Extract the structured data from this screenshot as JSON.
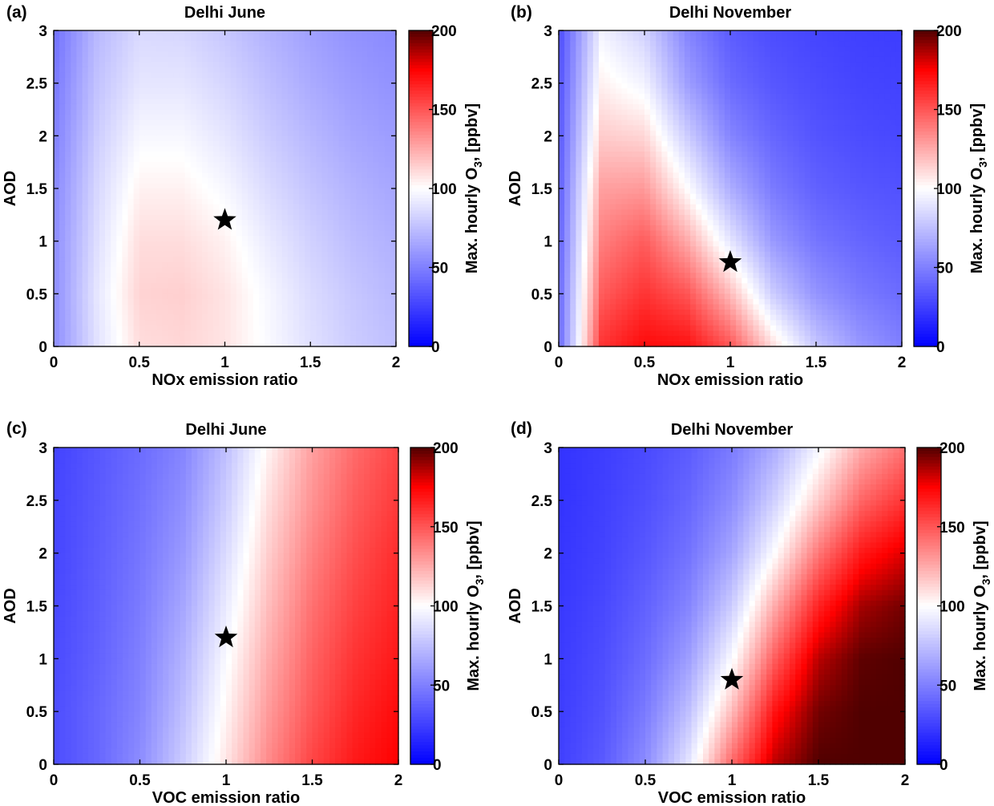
{
  "colormap": {
    "name": "blue-white-red-darkred",
    "stops": [
      {
        "v": 0,
        "color": "#0000ff"
      },
      {
        "v": 100,
        "color": "#ffffff"
      },
      {
        "v": 175,
        "color": "#ff0000"
      },
      {
        "v": 200,
        "color": "#500000"
      }
    ]
  },
  "chart_data": [
    {
      "type": "heatmap",
      "panel_label": "(a)",
      "title": "Delhi June",
      "xlabel": "NOx emission ratio",
      "ylabel": "AOD",
      "xlim": [
        0,
        2
      ],
      "ylim": [
        0,
        3
      ],
      "xticks": [
        "0",
        "0.5",
        "1",
        "1.5",
        "2"
      ],
      "yticks": [
        "0",
        "0.5",
        "1",
        "1.5",
        "2",
        "2.5",
        "3"
      ],
      "colorbar": {
        "label": "Max. hourly O",
        "label_sub": "3",
        "label_suffix": ", [ppbv]",
        "range": [
          0,
          200
        ],
        "ticks": [
          "0",
          "50",
          "100",
          "150",
          "200"
        ]
      },
      "marker": {
        "symbol": "star",
        "x": 1.0,
        "y": 1.2
      },
      "x": [
        0,
        0.25,
        0.5,
        0.75,
        1.0,
        1.25,
        1.5,
        1.75,
        2.0
      ],
      "y": [
        0,
        0.5,
        1.0,
        1.5,
        2.0,
        2.5,
        3.0
      ],
      "z": [
        [
          55,
          88,
          110,
          112,
          108,
          98,
          88,
          80,
          75
        ],
        [
          55,
          90,
          113,
          114,
          108,
          97,
          86,
          78,
          72
        ],
        [
          55,
          87,
          110,
          110,
          104,
          92,
          82,
          74,
          69
        ],
        [
          53,
          84,
          104,
          104,
          97,
          86,
          77,
          70,
          65
        ],
        [
          50,
          80,
          97,
          97,
          90,
          80,
          72,
          65,
          61
        ],
        [
          47,
          76,
          90,
          90,
          84,
          75,
          67,
          61,
          57
        ],
        [
          44,
          72,
          85,
          84,
          78,
          70,
          63,
          57,
          54
        ]
      ]
    },
    {
      "type": "heatmap",
      "panel_label": "(b)",
      "title": "Delhi November",
      "xlabel": "NOx emission ratio",
      "ylabel": "AOD",
      "xlim": [
        0,
        2
      ],
      "ylim": [
        0,
        3
      ],
      "xticks": [
        "0",
        "0.5",
        "1",
        "1.5",
        "2"
      ],
      "yticks": [
        "0",
        "0.5",
        "1",
        "1.5",
        "2",
        "2.5",
        "3"
      ],
      "colorbar": {
        "label": "Max. hourly O",
        "label_sub": "3",
        "label_suffix": ", [ppbv]",
        "range": [
          0,
          200
        ],
        "ticks": [
          "0",
          "50",
          "100",
          "150",
          "200"
        ]
      },
      "marker": {
        "symbol": "star",
        "x": 1.0,
        "y": 0.8
      },
      "x": [
        0,
        0.25,
        0.5,
        0.75,
        1.0,
        1.25,
        1.5,
        1.75,
        2.0
      ],
      "y": [
        0,
        0.5,
        1.0,
        1.5,
        2.0,
        2.5,
        3.0
      ],
      "z": [
        [
          40,
          160,
          172,
          170,
          150,
          110,
          78,
          60,
          50
        ],
        [
          40,
          148,
          160,
          150,
          120,
          80,
          58,
          48,
          42
        ],
        [
          38,
          138,
          148,
          125,
          90,
          60,
          46,
          40,
          36
        ],
        [
          36,
          128,
          130,
          100,
          68,
          48,
          38,
          34,
          32
        ],
        [
          34,
          115,
          112,
          80,
          52,
          40,
          33,
          30,
          28
        ],
        [
          32,
          104,
          95,
          62,
          42,
          34,
          30,
          27,
          26
        ],
        [
          30,
          95,
          82,
          52,
          36,
          30,
          27,
          25,
          24
        ]
      ]
    },
    {
      "type": "heatmap",
      "panel_label": "(c)",
      "title": "Delhi June",
      "xlabel": "VOC emission ratio",
      "ylabel": "AOD",
      "xlim": [
        0,
        2
      ],
      "ylim": [
        0,
        3
      ],
      "xticks": [
        "0",
        "0.5",
        "1",
        "1.5",
        "2"
      ],
      "yticks": [
        "0",
        "0.5",
        "1",
        "1.5",
        "2",
        "2.5",
        "3"
      ],
      "colorbar": {
        "label": "Max. hourly O",
        "label_sub": "3",
        "label_suffix": ", [ppbv]",
        "range": [
          0,
          200
        ],
        "ticks": [
          "0",
          "50",
          "100",
          "150",
          "200"
        ]
      },
      "marker": {
        "symbol": "star",
        "x": 1.0,
        "y": 1.2
      },
      "x": [
        0,
        0.25,
        0.5,
        0.75,
        1.0,
        1.25,
        1.5,
        1.75,
        2.0
      ],
      "y": [
        0,
        0.5,
        1.0,
        1.5,
        2.0,
        2.5,
        3.0
      ],
      "z": [
        [
          30,
          40,
          55,
          80,
          108,
          135,
          155,
          168,
          175
        ],
        [
          30,
          40,
          52,
          75,
          103,
          130,
          150,
          164,
          172
        ],
        [
          29,
          38,
          50,
          70,
          98,
          125,
          146,
          160,
          168
        ],
        [
          28,
          37,
          48,
          65,
          92,
          120,
          142,
          156,
          165
        ],
        [
          27,
          36,
          46,
          60,
          86,
          115,
          137,
          152,
          162
        ],
        [
          27,
          35,
          44,
          56,
          80,
          110,
          132,
          148,
          158
        ],
        [
          26,
          34,
          42,
          52,
          75,
          104,
          128,
          144,
          155
        ]
      ]
    },
    {
      "type": "heatmap",
      "panel_label": "(d)",
      "title": "Delhi November",
      "xlabel": "VOC emission ratio",
      "ylabel": "AOD",
      "xlim": [
        0,
        2
      ],
      "ylim": [
        0,
        3
      ],
      "xticks": [
        "0",
        "0.5",
        "1",
        "1.5",
        "2"
      ],
      "yticks": [
        "0",
        "0.5",
        "1",
        "1.5",
        "2",
        "2.5",
        "3"
      ],
      "colorbar": {
        "label": "Max. hourly O",
        "label_sub": "3",
        "label_suffix": ", [ppbv]",
        "range": [
          0,
          200
        ],
        "ticks": [
          "0",
          "50",
          "100",
          "150",
          "200"
        ]
      },
      "marker": {
        "symbol": "star",
        "x": 1.0,
        "y": 0.8
      },
      "x": [
        0,
        0.25,
        0.5,
        0.75,
        1.0,
        1.25,
        1.5,
        1.75,
        2.0
      ],
      "y": [
        0,
        0.5,
        1.0,
        1.5,
        2.0,
        2.5,
        3.0
      ],
      "z": [
        [
          25,
          35,
          55,
          90,
          145,
          185,
          200,
          200,
          200
        ],
        [
          24,
          32,
          48,
          75,
          120,
          170,
          195,
          200,
          200
        ],
        [
          23,
          30,
          42,
          62,
          98,
          148,
          185,
          198,
          200
        ],
        [
          22,
          28,
          38,
          52,
          80,
          125,
          165,
          188,
          195
        ],
        [
          21,
          26,
          34,
          45,
          65,
          100,
          140,
          168,
          180
        ],
        [
          20,
          25,
          31,
          40,
          55,
          82,
          115,
          145,
          160
        ],
        [
          20,
          24,
          29,
          36,
          48,
          68,
          96,
          125,
          142
        ]
      ]
    }
  ]
}
